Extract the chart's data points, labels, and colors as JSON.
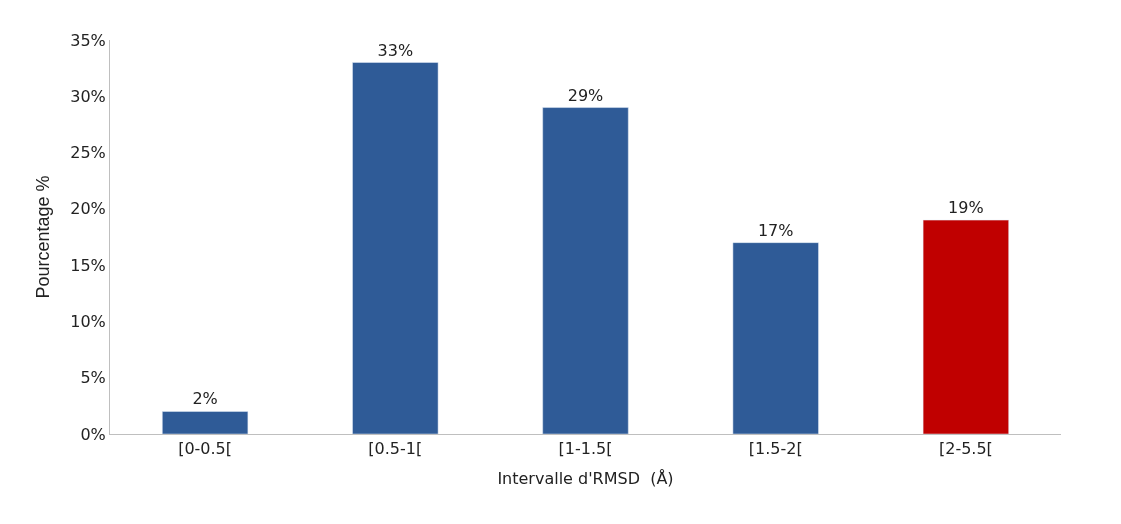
{
  "chart_data": {
    "type": "bar",
    "xlabel": "Intervalle d'RMSD  (Å)",
    "ylabel": "Pourcentage %",
    "categories": [
      "[0-0.5[",
      "[0.5-1[",
      "[1-1.5[",
      "[1.5-2[",
      "[2-5.5["
    ],
    "values": [
      2,
      33,
      29,
      17,
      19
    ],
    "colors": [
      "#2f5b97",
      "#2f5b97",
      "#2f5b97",
      "#2f5b97",
      "#c00000"
    ],
    "value_labels": [
      "2%",
      "33%",
      "29%",
      "17%",
      "19%"
    ],
    "ylim": [
      0,
      35
    ],
    "yticks": [
      {
        "value": 0,
        "label": "0%"
      },
      {
        "value": 5,
        "label": "5%"
      },
      {
        "value": 10,
        "label": "10%"
      },
      {
        "value": 15,
        "label": "15%"
      },
      {
        "value": 20,
        "label": "20%"
      },
      {
        "value": 25,
        "label": "25%"
      },
      {
        "value": 30,
        "label": "30%"
      },
      {
        "value": 35,
        "label": "35%"
      }
    ],
    "legend": false
  }
}
